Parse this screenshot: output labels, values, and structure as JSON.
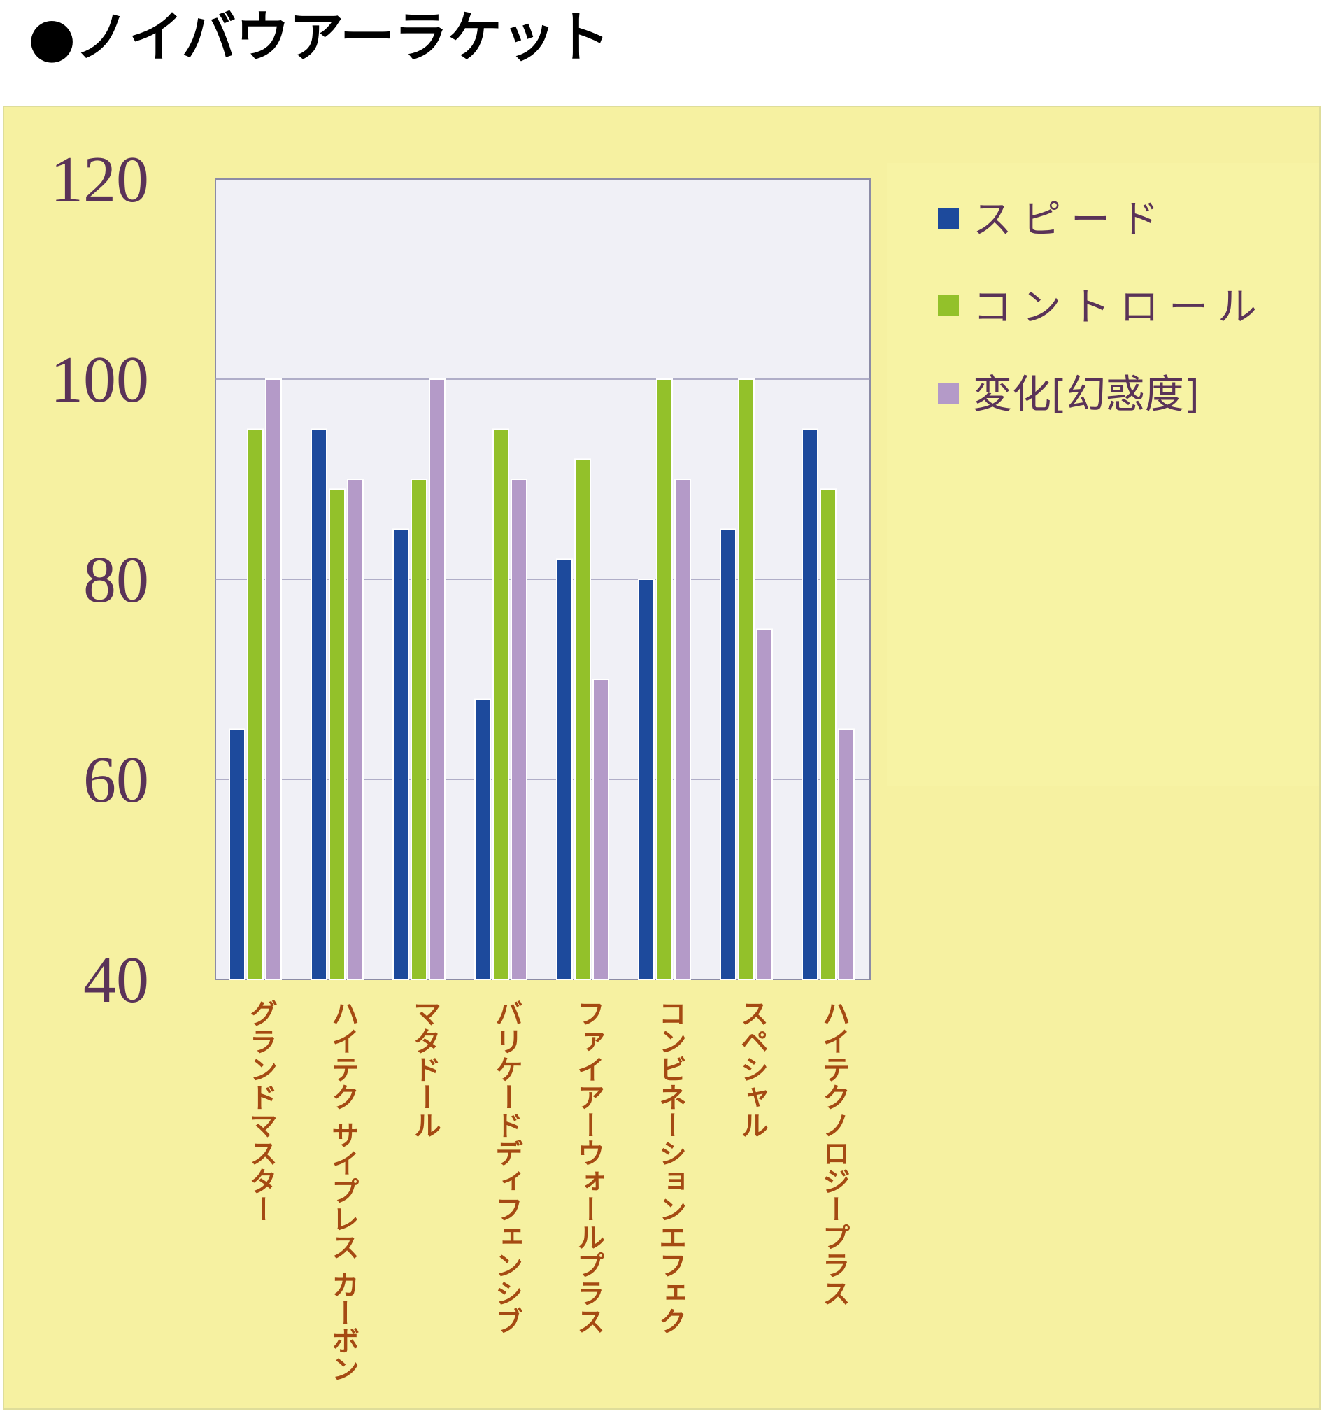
{
  "title": "●ノイバウアーラケット",
  "colors": {
    "panel_background": "#f6f1a1",
    "plot_background": "#f0f0f6",
    "gridline": "#9a98b8",
    "axis_text": "#5a3358",
    "category_text": "#a54a12"
  },
  "chart_data": {
    "type": "bar",
    "orientation": "vertical",
    "categories": [
      "グランドマスター",
      "ハイテク サイプレス カーボン",
      "マタドール",
      "バリケードディフェンシブ",
      "ファイアーウォールプラス",
      "コンビネーションエフェク",
      "スペシャル",
      "ハイテクノロジープラス"
    ],
    "series": [
      {
        "name": "スピード",
        "color": "#1d4a9c",
        "values": [
          65,
          95,
          85,
          68,
          82,
          80,
          85,
          95
        ]
      },
      {
        "name": "コントロール",
        "color": "#93c12a",
        "values": [
          95,
          89,
          90,
          95,
          92,
          100,
          100,
          89
        ]
      },
      {
        "name": "変化[幻惑度]",
        "color": "#b49ac8",
        "values": [
          100,
          90,
          100,
          90,
          70,
          90,
          75,
          65
        ]
      }
    ],
    "y_ticks": [
      120,
      100,
      80,
      60,
      40
    ],
    "ylim": [
      40,
      120
    ],
    "grid": true,
    "legend": "right",
    "xlabel": "",
    "ylabel": "",
    "category_label_orientation": "vertical"
  }
}
